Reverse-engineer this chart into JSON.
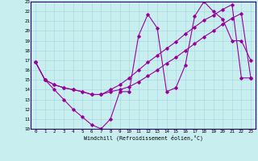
{
  "xlabel": "Windchill (Refroidissement éolien,°C)",
  "bg_color": "#c8eef0",
  "line_color": "#990099",
  "xlim": [
    -0.5,
    23.5
  ],
  "ylim": [
    10,
    23
  ],
  "xticks": [
    0,
    1,
    2,
    3,
    4,
    5,
    6,
    7,
    8,
    9,
    10,
    11,
    12,
    13,
    14,
    15,
    16,
    17,
    18,
    19,
    20,
    21,
    22,
    23
  ],
  "yticks": [
    10,
    11,
    12,
    13,
    14,
    15,
    16,
    17,
    18,
    19,
    20,
    21,
    22,
    23
  ],
  "line1_x": [
    0,
    1,
    2,
    3,
    4,
    5,
    6,
    7,
    8,
    9,
    10,
    11,
    12,
    13,
    14,
    15,
    16,
    17,
    18,
    19,
    20,
    21,
    22,
    23
  ],
  "line1_y": [
    16.8,
    15.0,
    14.0,
    13.0,
    12.0,
    11.2,
    10.4,
    10.0,
    11.0,
    13.8,
    13.8,
    19.5,
    21.7,
    20.3,
    13.8,
    14.2,
    16.5,
    21.5,
    23.0,
    22.0,
    21.2,
    19.0,
    19.0,
    17.0
  ],
  "line2_x": [
    0,
    1,
    2,
    3,
    4,
    5,
    6,
    7,
    8,
    9,
    10,
    11,
    12,
    13,
    14,
    15,
    16,
    17,
    18,
    19,
    20,
    21,
    22,
    23
  ],
  "line2_y": [
    16.8,
    15.0,
    14.5,
    14.2,
    14.0,
    13.8,
    13.5,
    13.5,
    13.8,
    14.0,
    14.3,
    14.8,
    15.4,
    16.0,
    16.7,
    17.3,
    18.0,
    18.7,
    19.4,
    20.0,
    20.7,
    21.3,
    21.8,
    15.2
  ],
  "line3_x": [
    0,
    1,
    2,
    3,
    4,
    5,
    6,
    7,
    8,
    9,
    10,
    11,
    12,
    13,
    14,
    15,
    16,
    17,
    18,
    19,
    20,
    21,
    22,
    23
  ],
  "line3_y": [
    16.8,
    15.0,
    14.5,
    14.2,
    14.0,
    13.8,
    13.5,
    13.5,
    14.0,
    14.5,
    15.2,
    16.0,
    16.8,
    17.5,
    18.2,
    18.9,
    19.7,
    20.4,
    21.1,
    21.6,
    22.2,
    22.7,
    15.2,
    15.2
  ]
}
